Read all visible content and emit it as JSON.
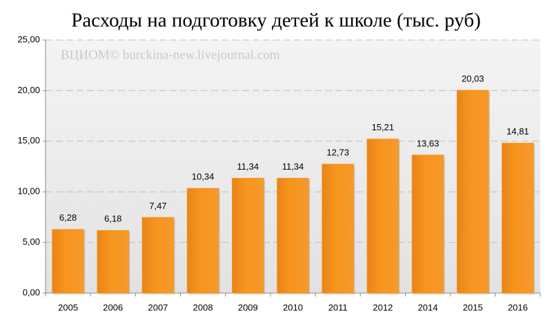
{
  "chart_data": {
    "type": "bar",
    "title": "Расходы на подготовку детей к школе (тыс. руб)",
    "watermark": "ВЦИОМ© burckina-new.livejournal.com",
    "categories": [
      "2005",
      "2006",
      "2007",
      "2008",
      "2009",
      "2010",
      "2011",
      "2012",
      "2014",
      "2015",
      "2016"
    ],
    "values": [
      6.28,
      6.18,
      7.47,
      10.34,
      11.34,
      11.34,
      12.73,
      15.21,
      13.63,
      20.03,
      14.81
    ],
    "value_labels": [
      "6,28",
      "6,18",
      "7,47",
      "10,34",
      "11,34",
      "11,34",
      "12,73",
      "15,21",
      "13,63",
      "20,03",
      "14,81"
    ],
    "color": "#f7941d",
    "ylim": [
      0,
      25
    ],
    "yticks": [
      {
        "value": 0,
        "label": "0,00"
      },
      {
        "value": 5,
        "label": "5,00"
      },
      {
        "value": 10,
        "label": "10,00"
      },
      {
        "value": 15,
        "label": "15,00"
      },
      {
        "value": 20,
        "label": "20,00"
      },
      {
        "value": 25,
        "label": "25,00"
      }
    ],
    "grid": true
  }
}
